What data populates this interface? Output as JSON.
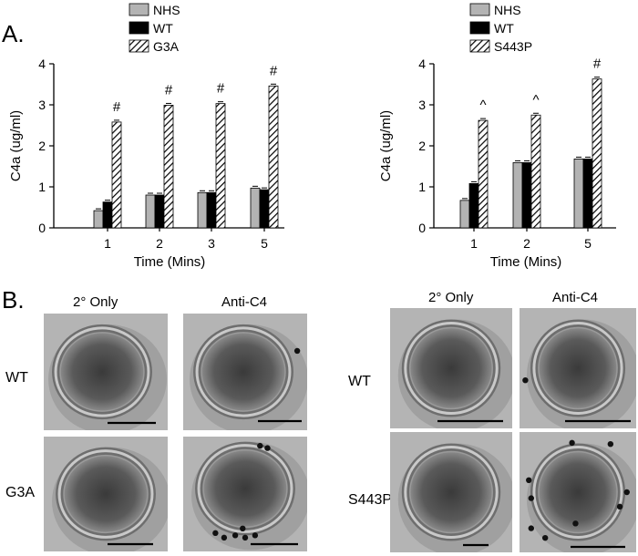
{
  "panel_a_label": "A.",
  "panel_b_label": "B.",
  "colors": {
    "nhs": "#b3b3b3",
    "wt": "#000000",
    "mutant_fill": "hatch"
  },
  "chart_data": [
    {
      "type": "bar",
      "legend": [
        "NHS",
        "WT",
        "G3A"
      ],
      "categories": [
        "1",
        "2",
        "3",
        "5"
      ],
      "xlabel": "Time (Mins)",
      "ylabel": "C4a (ug/ml)",
      "ylim": [
        0,
        4
      ],
      "yticks": [
        "0",
        "1",
        "2",
        "3",
        "4"
      ],
      "series": [
        {
          "name": "NHS",
          "values": [
            0.42,
            0.8,
            0.86,
            0.97
          ]
        },
        {
          "name": "WT",
          "values": [
            0.63,
            0.8,
            0.86,
            0.93
          ]
        },
        {
          "name": "G3A",
          "values": [
            2.58,
            2.99,
            3.03,
            3.46
          ]
        }
      ],
      "annotations": [
        "#",
        "#",
        "#",
        "#"
      ]
    },
    {
      "type": "bar",
      "legend": [
        "NHS",
        "WT",
        "S443P"
      ],
      "categories": [
        "1",
        "2",
        "5"
      ],
      "xlabel": "Time (Mins)",
      "ylabel": "C4a (ug/ml)",
      "ylim": [
        0,
        4
      ],
      "yticks": [
        "0",
        "1",
        "2",
        "3",
        "4"
      ],
      "series": [
        {
          "name": "NHS",
          "values": [
            0.67,
            1.59,
            1.68
          ]
        },
        {
          "name": "WT",
          "values": [
            1.08,
            1.59,
            1.68
          ]
        },
        {
          "name": "S443P",
          "values": [
            2.62,
            2.75,
            3.63
          ]
        }
      ],
      "annotations": [
        "^",
        "^",
        "#"
      ]
    }
  ],
  "panel_b": {
    "left": {
      "col_headers": [
        "2° Only",
        "Anti-C4"
      ],
      "row_labels": [
        "WT",
        "G3A"
      ]
    },
    "right": {
      "col_headers": [
        "2° Only",
        "Anti-C4"
      ],
      "row_labels": [
        "WT",
        "S443P"
      ]
    }
  }
}
